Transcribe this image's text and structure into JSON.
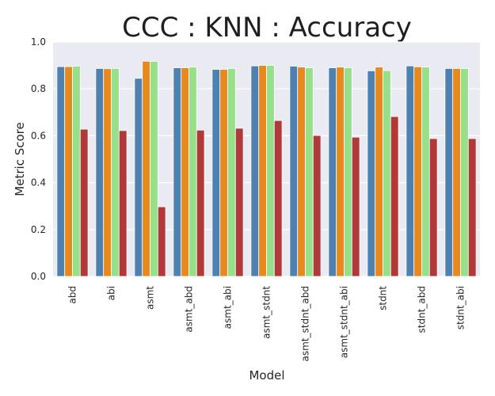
{
  "chart_data": {
    "type": "bar",
    "title": "CCC : KNN : Accuracy",
    "xlabel": "Model",
    "ylabel": "Metric Score",
    "ylim": [
      0,
      1.0
    ],
    "yticks": [
      "0.0",
      "0.2",
      "0.4",
      "0.6",
      "0.8",
      "1.0"
    ],
    "grid": true,
    "background": "#eaeaf2",
    "categories": [
      "abd",
      "abi",
      "asmt",
      "asmt_abd",
      "asmt_abi",
      "asmt_stdnt",
      "asmt_stdnt_abd",
      "asmt_stdnt_abi",
      "stdnt",
      "stdnt_abd",
      "stdnt_abi"
    ],
    "series": [
      {
        "color": "#4f81b0",
        "values": [
          0.895,
          0.887,
          0.845,
          0.89,
          0.883,
          0.898,
          0.897,
          0.89,
          0.877,
          0.898,
          0.887
        ]
      },
      {
        "color": "#e8891f",
        "values": [
          0.895,
          0.886,
          0.918,
          0.89,
          0.883,
          0.9,
          0.893,
          0.893,
          0.893,
          0.894,
          0.887
        ]
      },
      {
        "color": "#98df8a",
        "values": [
          0.897,
          0.887,
          0.917,
          0.893,
          0.887,
          0.9,
          0.89,
          0.89,
          0.878,
          0.893,
          0.887
        ]
      },
      {
        "color": "#b03a3a",
        "values": [
          0.628,
          0.622,
          0.297,
          0.624,
          0.632,
          0.665,
          0.601,
          0.594,
          0.682,
          0.588,
          0.588
        ]
      }
    ]
  }
}
